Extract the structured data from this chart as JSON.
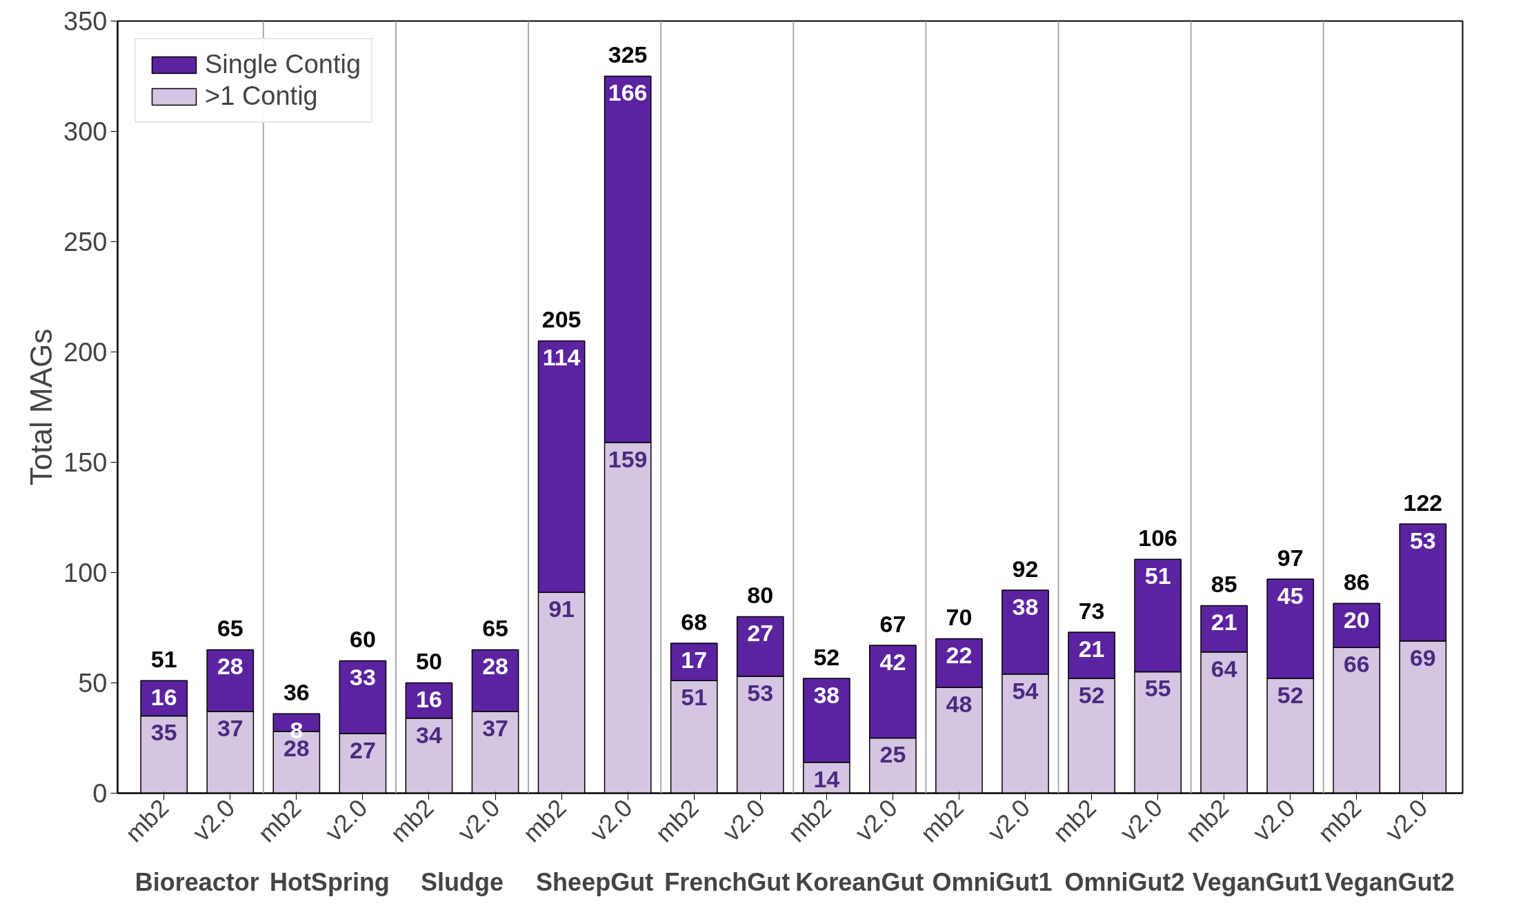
{
  "chart_data": {
    "type": "bar",
    "stacked": true,
    "ylabel": "Total MAGs",
    "categories": [
      "mb2",
      "v2.0",
      "mb2",
      "v2.0",
      "mb2",
      "v2.0",
      "mb2",
      "v2.0",
      "mb2",
      "v2.0",
      "mb2",
      "v2.0",
      "mb2",
      "v2.0",
      "mb2",
      "v2.0",
      "mb2",
      "v2.0",
      "mb2",
      "v2.0"
    ],
    "series": [
      {
        "name": ">1 Contig",
        "color": "#d4c6e2",
        "values": [
          35,
          37,
          28,
          27,
          34,
          37,
          91,
          159,
          51,
          53,
          14,
          25,
          48,
          54,
          52,
          55,
          64,
          52,
          66,
          69
        ]
      },
      {
        "name": "Single Contig",
        "color": "#5b23a0",
        "values": [
          16,
          28,
          8,
          33,
          16,
          28,
          114,
          166,
          17,
          27,
          38,
          42,
          22,
          38,
          21,
          51,
          21,
          45,
          20,
          53
        ]
      }
    ],
    "totals": [
      "51",
      "65",
      "36",
      "60",
      "50",
      "65",
      "205",
      "325",
      "68",
      "80",
      "52",
      "67",
      "70",
      "92",
      "73",
      "106",
      "85",
      "97",
      "86",
      "122"
    ],
    "annotations": [
      "Bioreactor",
      "HotSpring",
      "Sludge",
      "SheepGut",
      "FrenchGut",
      "KoreanGut",
      "OmniGut1",
      "OmniGut2",
      "VeganGut1",
      "VeganGut2"
    ],
    "ylim": [
      0,
      350
    ],
    "yticks": [
      0,
      50,
      100,
      150,
      200,
      250,
      300,
      350
    ],
    "data_labels": true,
    "legend": "top left",
    "grid": false
  }
}
